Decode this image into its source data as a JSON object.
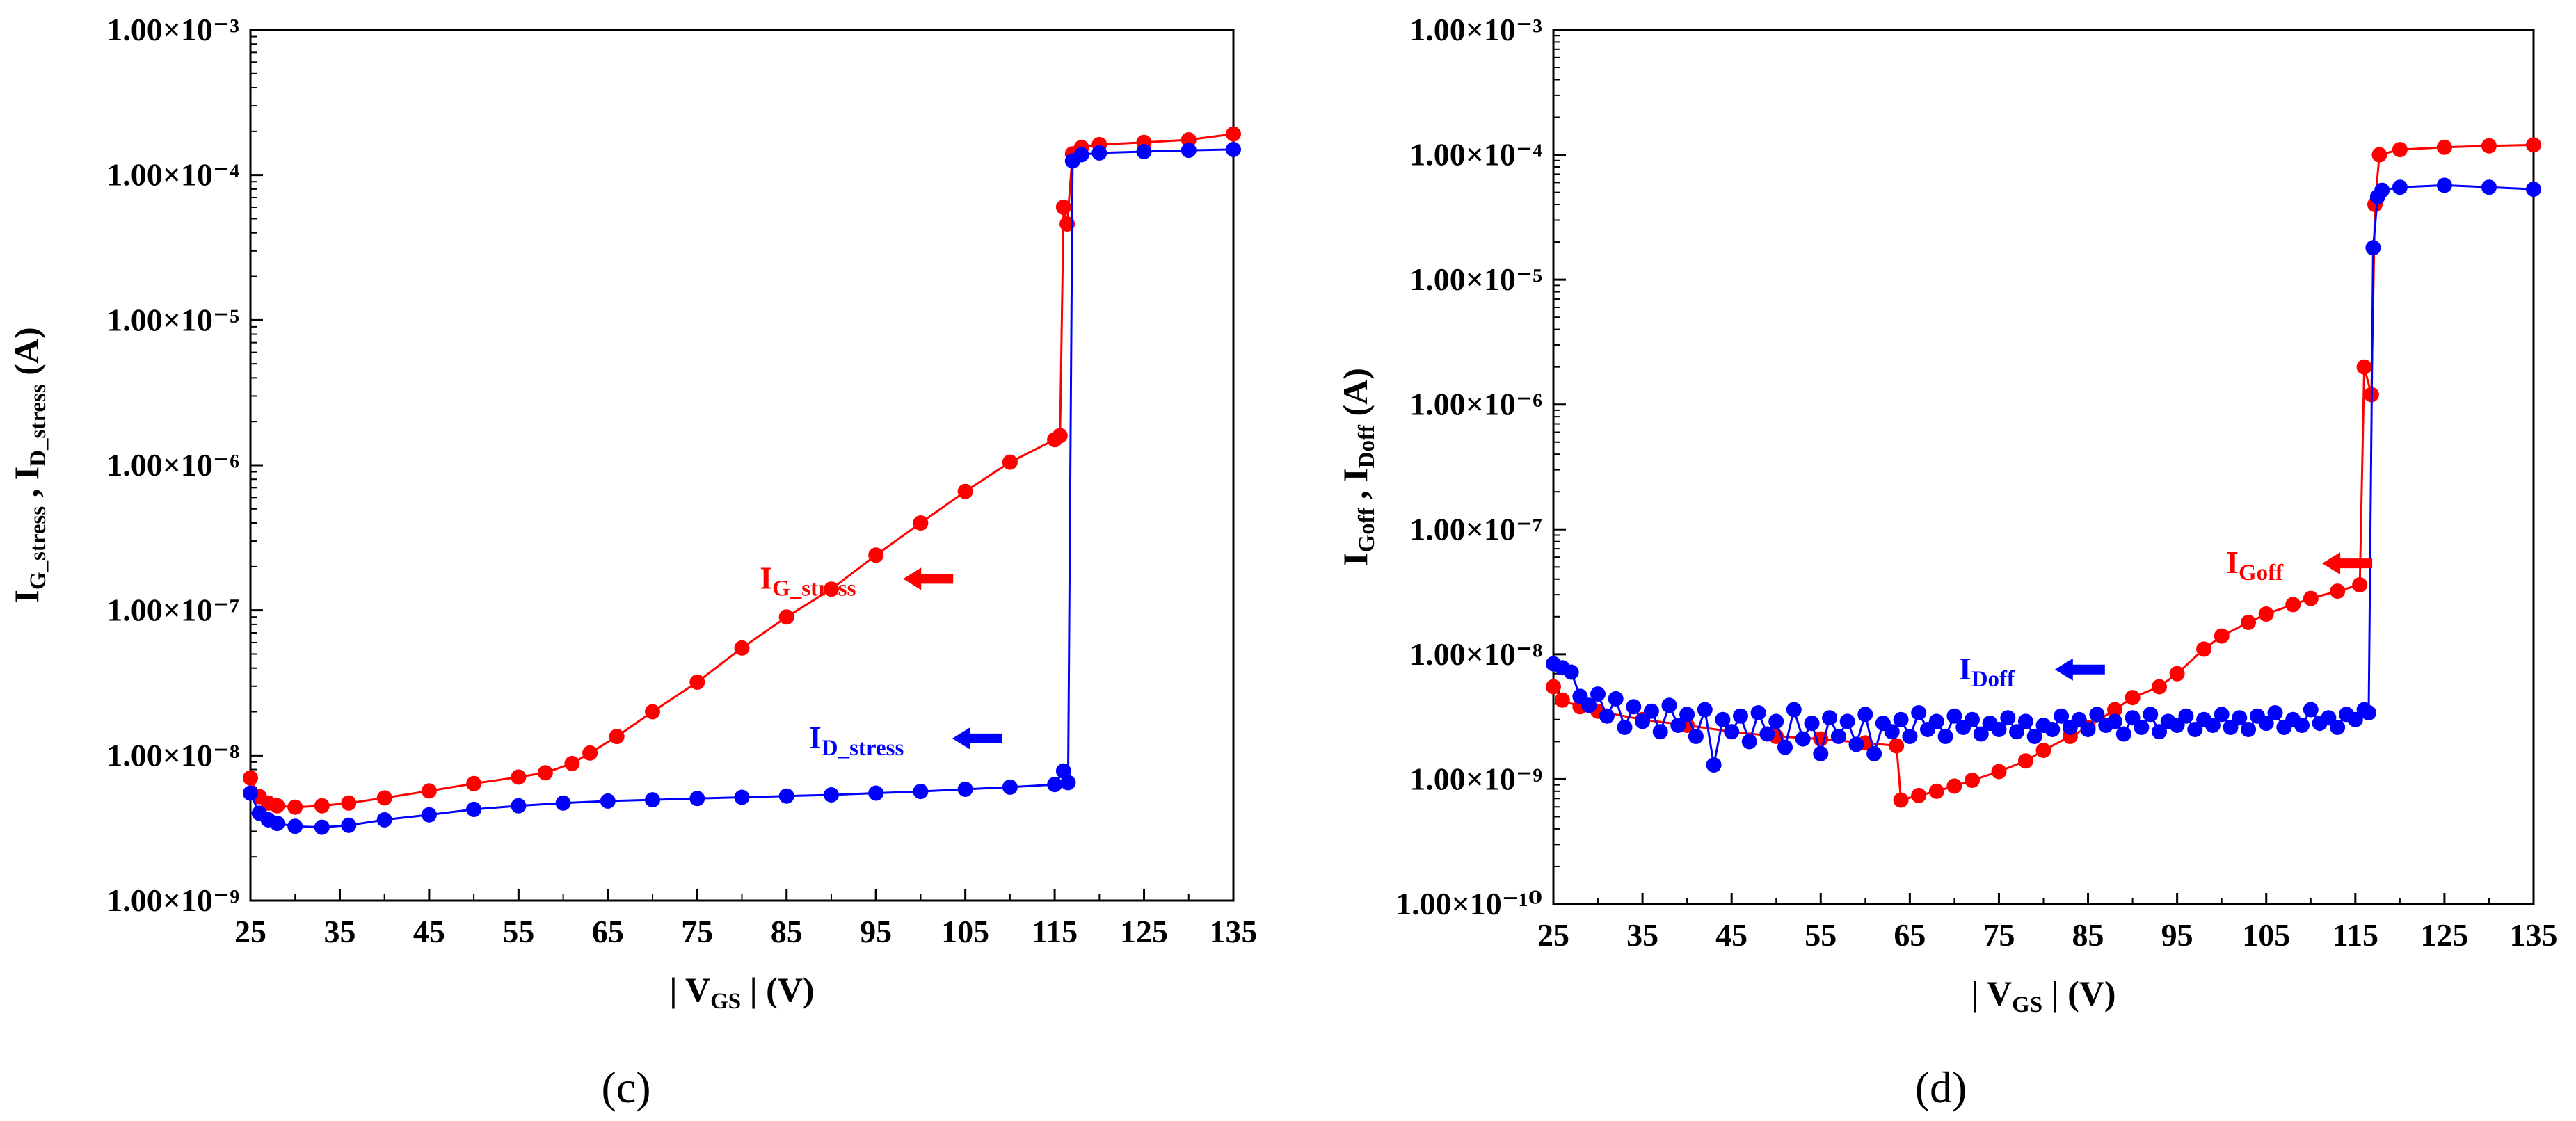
{
  "chart_data": [
    {
      "panel_label": "(c)",
      "type": "scatter",
      "x_scale": "linear",
      "y_scale": "log",
      "xlim": [
        25,
        135
      ],
      "ylim": [
        1e-09,
        0.001
      ],
      "x_ticks": [
        25,
        35,
        45,
        55,
        65,
        75,
        85,
        95,
        105,
        115,
        125,
        135
      ],
      "y_ticks": [
        "1.00×10⁻⁹",
        "1.00×10⁻⁸",
        "1.00×10⁻⁷",
        "1.00×10⁻⁶",
        "1.00×10⁻⁵",
        "1.00×10⁻⁴",
        "1.00×10⁻³"
      ],
      "xlabel": {
        "prefix": "| V",
        "sub": "GS",
        "suffix": " |  (V)"
      },
      "ylabel": {
        "a": "I",
        "a_sub": "G_stress",
        "sep": " , ",
        "b": "I",
        "b_sub": "D_stress",
        "unit": "  (A)"
      },
      "series": [
        {
          "name": "I",
          "name_sub": "G_stress",
          "color": "#ff0000",
          "points": [
            [
              25,
              7e-09
            ],
            [
              26,
              5.2e-09
            ],
            [
              27,
              4.7e-09
            ],
            [
              28,
              4.5e-09
            ],
            [
              30,
              4.4e-09
            ],
            [
              33,
              4.5e-09
            ],
            [
              36,
              4.7e-09
            ],
            [
              40,
              5.1e-09
            ],
            [
              45,
              5.7e-09
            ],
            [
              50,
              6.4e-09
            ],
            [
              55,
              7.1e-09
            ],
            [
              58,
              7.6e-09
            ],
            [
              61,
              8.8e-09
            ],
            [
              63,
              1.04e-08
            ],
            [
              66,
              1.35e-08
            ],
            [
              70,
              2e-08
            ],
            [
              75,
              3.2e-08
            ],
            [
              80,
              5.5e-08
            ],
            [
              85,
              9e-08
            ],
            [
              90,
              1.4e-07
            ],
            [
              95,
              2.4e-07
            ],
            [
              100,
              4e-07
            ],
            [
              105,
              6.6e-07
            ],
            [
              110,
              1.05e-06
            ],
            [
              115,
              1.5e-06
            ],
            [
              115.6,
              1.6e-06
            ],
            [
              116,
              6e-05
            ],
            [
              116.4,
              4.6e-05
            ],
            [
              117,
              0.00014
            ],
            [
              118,
              0.000155
            ],
            [
              120,
              0.000162
            ],
            [
              125,
              0.000168
            ],
            [
              130,
              0.000175
            ],
            [
              135,
              0.000192
            ]
          ]
        },
        {
          "name": "I",
          "name_sub": "D_stress",
          "color": "#0000ff",
          "points": [
            [
              25,
              5.5e-09
            ],
            [
              26,
              4e-09
            ],
            [
              27,
              3.6e-09
            ],
            [
              28,
              3.4e-09
            ],
            [
              30,
              3.25e-09
            ],
            [
              33,
              3.2e-09
            ],
            [
              36,
              3.3e-09
            ],
            [
              40,
              3.6e-09
            ],
            [
              45,
              3.9e-09
            ],
            [
              50,
              4.25e-09
            ],
            [
              55,
              4.5e-09
            ],
            [
              60,
              4.7e-09
            ],
            [
              65,
              4.85e-09
            ],
            [
              70,
              4.95e-09
            ],
            [
              75,
              5.05e-09
            ],
            [
              80,
              5.15e-09
            ],
            [
              85,
              5.25e-09
            ],
            [
              90,
              5.35e-09
            ],
            [
              95,
              5.5e-09
            ],
            [
              100,
              5.65e-09
            ],
            [
              105,
              5.85e-09
            ],
            [
              110,
              6.05e-09
            ],
            [
              115,
              6.3e-09
            ],
            [
              116,
              7.8e-09
            ],
            [
              116.5,
              6.5e-09
            ],
            [
              117,
              0.000125
            ],
            [
              118,
              0.000138
            ],
            [
              120,
              0.000142
            ],
            [
              125,
              0.000145
            ],
            [
              130,
              0.000148
            ],
            [
              135,
              0.00015
            ]
          ]
        }
      ],
      "annotations": [
        {
          "name": "I",
          "sub": "G_stress",
          "color": "#ff0000",
          "x": 82,
          "logy": -6.85,
          "arrow": "left"
        },
        {
          "name": "I",
          "sub": "D_stress",
          "color": "#0000ff",
          "x": 87.5,
          "logy": -7.95,
          "arrow": "left"
        }
      ]
    },
    {
      "panel_label": "(d)",
      "type": "scatter",
      "x_scale": "linear",
      "y_scale": "log",
      "xlim": [
        25,
        135
      ],
      "ylim": [
        1e-10,
        0.001
      ],
      "x_ticks": [
        25,
        35,
        45,
        55,
        65,
        75,
        85,
        95,
        105,
        115,
        125,
        135
      ],
      "y_ticks": [
        "1.00×10⁻¹⁰",
        "1.00×10⁻⁹",
        "1.00×10⁻⁸",
        "1.00×10⁻⁷",
        "1.00×10⁻⁶",
        "1.00×10⁻⁵",
        "1.00×10⁻⁴",
        "1.00×10⁻³"
      ],
      "xlabel": {
        "prefix": "| V",
        "sub": "GS",
        "suffix": " |  (V)"
      },
      "ylabel": {
        "a": "I",
        "a_sub": "Goff",
        "sep": " , ",
        "b": "I",
        "b_sub": "Doff",
        "unit": "  (A)"
      },
      "series": [
        {
          "name": "I",
          "name_sub": "Goff",
          "color": "#ff0000",
          "points": [
            [
              25,
              5.5e-09
            ],
            [
              26,
              4.3e-09
            ],
            [
              28,
              3.8e-09
            ],
            [
              30,
              3.5e-09
            ],
            [
              35,
              3e-09
            ],
            [
              40,
              2.7e-09
            ],
            [
              45,
              2.4e-09
            ],
            [
              50,
              2.2e-09
            ],
            [
              55,
              2.1e-09
            ],
            [
              60,
              1.95e-09
            ],
            [
              63.5,
              1.85e-09
            ],
            [
              64,
              6.8e-10
            ],
            [
              66,
              7.4e-10
            ],
            [
              68,
              8e-10
            ],
            [
              70,
              8.8e-10
            ],
            [
              72,
              9.8e-10
            ],
            [
              75,
              1.15e-09
            ],
            [
              78,
              1.4e-09
            ],
            [
              80,
              1.7e-09
            ],
            [
              83,
              2.2e-09
            ],
            [
              85,
              2.6e-09
            ],
            [
              88,
              3.6e-09
            ],
            [
              90,
              4.5e-09
            ],
            [
              93,
              5.5e-09
            ],
            [
              95,
              7e-09
            ],
            [
              98,
              1.1e-08
            ],
            [
              100,
              1.4e-08
            ],
            [
              103,
              1.8e-08
            ],
            [
              105,
              2.1e-08
            ],
            [
              108,
              2.5e-08
            ],
            [
              110,
              2.8e-08
            ],
            [
              113,
              3.2e-08
            ],
            [
              115.5,
              3.6e-08
            ],
            [
              116,
              2e-06
            ],
            [
              116.8,
              1.2e-06
            ],
            [
              117.2,
              4e-05
            ],
            [
              117.7,
              0.0001
            ],
            [
              120,
              0.00011
            ],
            [
              125,
              0.000115
            ],
            [
              130,
              0.000118
            ],
            [
              135,
              0.00012
            ]
          ]
        },
        {
          "name": "I",
          "name_sub": "Doff",
          "color": "#0000ff",
          "points": [
            [
              25,
              8.4e-09
            ],
            [
              26,
              7.8e-09
            ],
            [
              27,
              7.2e-09
            ],
            [
              28,
              4.6e-09
            ],
            [
              29,
              3.9e-09
            ],
            [
              30,
              4.8e-09
            ],
            [
              31,
              3.2e-09
            ],
            [
              32,
              4.4e-09
            ],
            [
              33,
              2.6e-09
            ],
            [
              34,
              3.8e-09
            ],
            [
              35,
              2.9e-09
            ],
            [
              36,
              3.5e-09
            ],
            [
              37,
              2.4e-09
            ],
            [
              38,
              3.9e-09
            ],
            [
              39,
              2.7e-09
            ],
            [
              40,
              3.3e-09
            ],
            [
              41,
              2.2e-09
            ],
            [
              42,
              3.6e-09
            ],
            [
              43,
              1.3e-09
            ],
            [
              44,
              3e-09
            ],
            [
              45,
              2.4e-09
            ],
            [
              46,
              3.2e-09
            ],
            [
              47,
              2e-09
            ],
            [
              48,
              3.4e-09
            ],
            [
              49,
              2.3e-09
            ],
            [
              50,
              2.9e-09
            ],
            [
              51,
              1.8e-09
            ],
            [
              52,
              3.6e-09
            ],
            [
              53,
              2.1e-09
            ],
            [
              54,
              2.8e-09
            ],
            [
              55,
              1.6e-09
            ],
            [
              56,
              3.1e-09
            ],
            [
              57,
              2.2e-09
            ],
            [
              58,
              2.9e-09
            ],
            [
              59,
              1.9e-09
            ],
            [
              60,
              3.3e-09
            ],
            [
              61,
              1.6e-09
            ],
            [
              62,
              2.8e-09
            ],
            [
              63,
              2.4e-09
            ],
            [
              64,
              3e-09
            ],
            [
              65,
              2.2e-09
            ],
            [
              66,
              3.4e-09
            ],
            [
              67,
              2.5e-09
            ],
            [
              68,
              2.9e-09
            ],
            [
              69,
              2.2e-09
            ],
            [
              70,
              3.2e-09
            ],
            [
              71,
              2.6e-09
            ],
            [
              72,
              3e-09
            ],
            [
              73,
              2.3e-09
            ],
            [
              74,
              2.8e-09
            ],
            [
              75,
              2.5e-09
            ],
            [
              76,
              3.1e-09
            ],
            [
              77,
              2.4e-09
            ],
            [
              78,
              2.9e-09
            ],
            [
              79,
              2.2e-09
            ],
            [
              80,
              2.7e-09
            ],
            [
              81,
              2.5e-09
            ],
            [
              82,
              3.2e-09
            ],
            [
              83,
              2.6e-09
            ],
            [
              84,
              3e-09
            ],
            [
              85,
              2.5e-09
            ],
            [
              86,
              3.3e-09
            ],
            [
              87,
              2.7e-09
            ],
            [
              88,
              2.9e-09
            ],
            [
              89,
              2.3e-09
            ],
            [
              90,
              3.1e-09
            ],
            [
              91,
              2.6e-09
            ],
            [
              92,
              3.3e-09
            ],
            [
              93,
              2.4e-09
            ],
            [
              94,
              2.9e-09
            ],
            [
              95,
              2.7e-09
            ],
            [
              96,
              3.2e-09
            ],
            [
              97,
              2.5e-09
            ],
            [
              98,
              3e-09
            ],
            [
              99,
              2.7e-09
            ],
            [
              100,
              3.3e-09
            ],
            [
              101,
              2.6e-09
            ],
            [
              102,
              3.1e-09
            ],
            [
              103,
              2.5e-09
            ],
            [
              104,
              3.2e-09
            ],
            [
              105,
              2.8e-09
            ],
            [
              106,
              3.4e-09
            ],
            [
              107,
              2.6e-09
            ],
            [
              108,
              3e-09
            ],
            [
              109,
              2.7e-09
            ],
            [
              110,
              3.6e-09
            ],
            [
              111,
              2.8e-09
            ],
            [
              112,
              3.1e-09
            ],
            [
              113,
              2.6e-09
            ],
            [
              114,
              3.3e-09
            ],
            [
              115,
              3e-09
            ],
            [
              116,
              3.6e-09
            ],
            [
              116.5,
              3.4e-09
            ],
            [
              117,
              1.8e-05
            ],
            [
              117.5,
              4.6e-05
            ],
            [
              118,
              5.2e-05
            ],
            [
              120,
              5.5e-05
            ],
            [
              125,
              5.7e-05
            ],
            [
              130,
              5.5e-05
            ],
            [
              135,
              5.3e-05
            ]
          ]
        }
      ],
      "annotations": [
        {
          "name": "I",
          "sub": "Goff",
          "color": "#ff0000",
          "x": 100.5,
          "logy": -7.35,
          "arrow": "left"
        },
        {
          "name": "I",
          "sub": "Doff",
          "color": "#0000ff",
          "x": 70.5,
          "logy": -8.2,
          "arrow": "left"
        }
      ]
    }
  ]
}
